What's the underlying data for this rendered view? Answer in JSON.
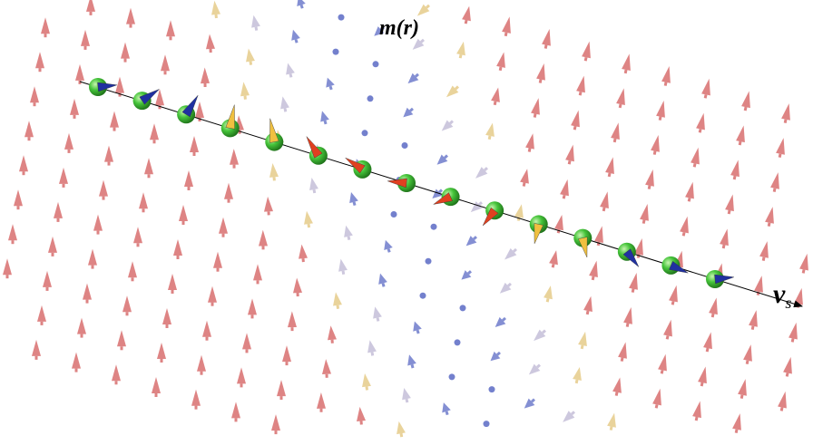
{
  "labels": {
    "field": "m(r)",
    "velocity": "v",
    "velocity_subscript": "s"
  }
}
